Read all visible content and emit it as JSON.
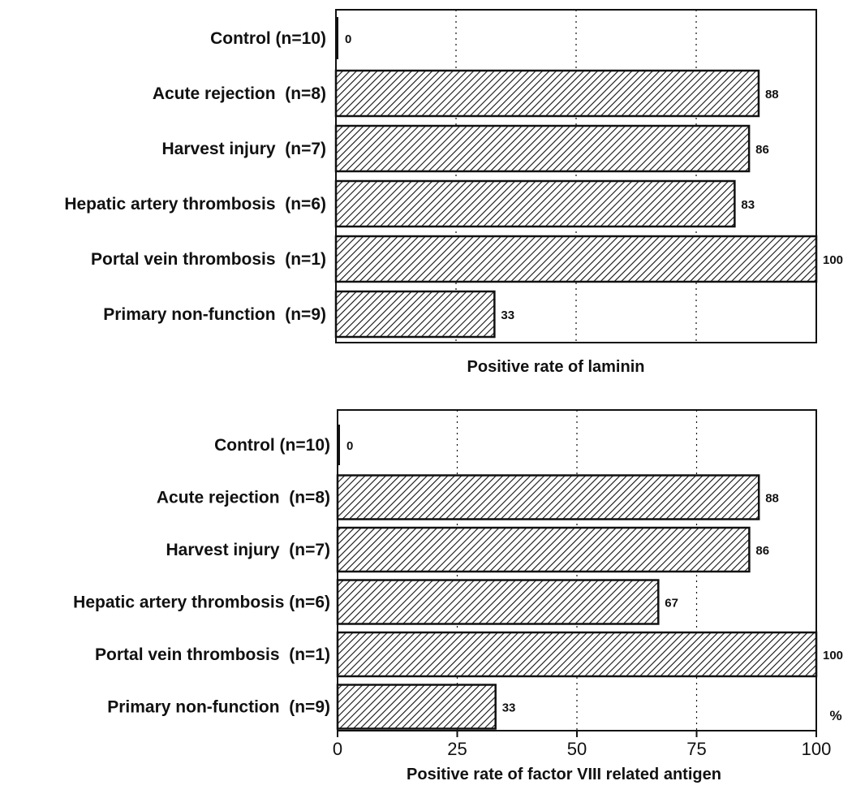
{
  "chart_data": [
    {
      "type": "bar",
      "orientation": "horizontal",
      "categories": [
        "Control (n=10)",
        "Acute rejection  (n=8)",
        "Harvest injury  (n=7)",
        "Hepatic artery thrombosis  (n=6)",
        "Portal vein thrombosis  (n=1)",
        "Primary non-function  (n=9)"
      ],
      "values": [
        0,
        88,
        86,
        83,
        100,
        33
      ],
      "value_labels": [
        "0",
        "88",
        "86",
        "83",
        "100",
        "33"
      ],
      "xlabel": "Positive rate of laminin",
      "xlim": [
        0,
        100
      ],
      "grid": "vertical dotted at 25, 50, 75",
      "bar_fill": "diagonal hatch"
    },
    {
      "type": "bar",
      "orientation": "horizontal",
      "categories": [
        "Control (n=10)",
        "Acute rejection  (n=8)",
        "Harvest injury  (n=7)",
        "Hepatic artery thrombosis (n=6)",
        "Portal vein thrombosis  (n=1)",
        "Primary non-function  (n=9)"
      ],
      "values": [
        0,
        88,
        86,
        67,
        100,
        33
      ],
      "value_labels": [
        "0",
        "88",
        "86",
        "67",
        "100",
        "33"
      ],
      "xlabel": "Positive rate of factor VIII related antigen",
      "xlim": [
        0,
        100
      ],
      "xticks": [
        "0",
        "25",
        "50",
        "75",
        "100"
      ],
      "x_unit": "%",
      "grid": "vertical dotted at 25, 50, 75",
      "bar_fill": "diagonal hatch"
    }
  ],
  "colors": {
    "ink": "#111111",
    "background": "#ffffff"
  }
}
